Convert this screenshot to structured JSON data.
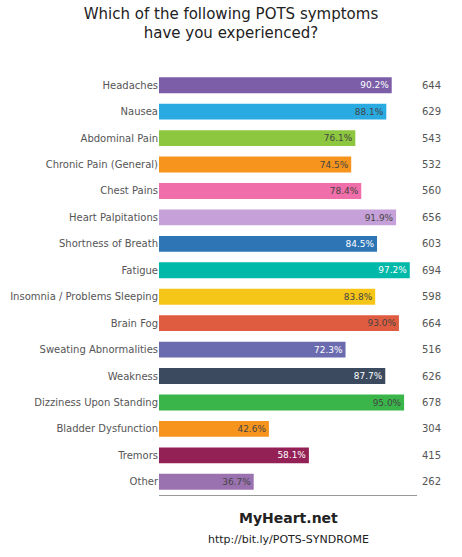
{
  "chart_data": {
    "type": "bar",
    "orientation": "horizontal",
    "title": "Which of the following POTS symptoms\nhave you experienced?",
    "categories": [
      "Headaches",
      "Nausea",
      "Abdominal Pain",
      "Chronic Pain (General)",
      "Chest Pains",
      "Heart Palpitations",
      "Shortness of Breath",
      "Fatigue",
      "Insomnia / Problems Sleeping",
      "Brain Fog",
      "Sweating Abnormalities",
      "Weakness",
      "Dizziness Upon Standing",
      "Bladder Dysfunction",
      "Tremors",
      "Other"
    ],
    "values": [
      90.2,
      88.1,
      76.1,
      74.5,
      78.4,
      91.9,
      84.5,
      97.2,
      83.8,
      93.0,
      72.3,
      87.7,
      95.0,
      42.6,
      58.1,
      36.7
    ],
    "value_labels": [
      "90.2%",
      "88.1%",
      "76.1%",
      "74.5%",
      "78.4%",
      "91.9%",
      "84.5%",
      "97.2%",
      "83.8%",
      "93.0%",
      "72.3%",
      "87.7%",
      "95.0%",
      "42.6%",
      "58.1%",
      "36.7%"
    ],
    "counts": [
      644,
      629,
      543,
      532,
      560,
      656,
      603,
      694,
      598,
      664,
      516,
      626,
      678,
      304,
      415,
      262
    ],
    "colors": [
      "#7b5ea7",
      "#29abe2",
      "#8dc63f",
      "#f7941d",
      "#f06ea9",
      "#c6a0d8",
      "#2e75b6",
      "#00b9a8",
      "#f5c518",
      "#e05c40",
      "#6b6bb0",
      "#3b4a5e",
      "#39b54a",
      "#f7941d",
      "#932156",
      "#9b72b0"
    ],
    "xlim": [
      0,
      100
    ],
    "data_labels": true,
    "tick_labels": "y",
    "grid": false,
    "annotations": [
      "MyHeart.net",
      "http://bit.ly/POTS-SYNDROME"
    ]
  }
}
